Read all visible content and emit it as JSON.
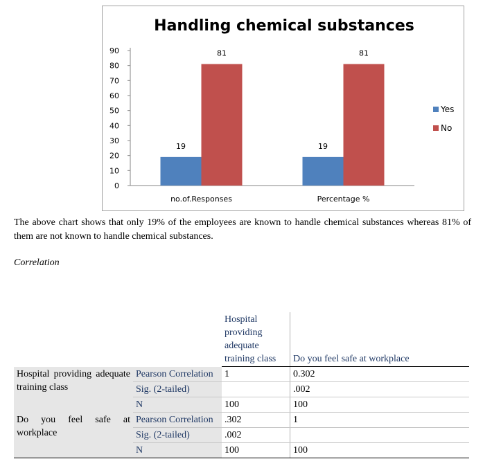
{
  "chart_data": {
    "type": "bar",
    "title": "Handling chemical substances",
    "categories": [
      "no.of.Responses",
      "Percentage %"
    ],
    "series": [
      {
        "name": "Yes",
        "values": [
          19,
          19
        ],
        "color": "#4f81bd"
      },
      {
        "name": "No",
        "values": [
          81,
          81
        ],
        "color": "#c0504d"
      }
    ],
    "ylim": [
      0,
      90
    ],
    "yticks": [
      0,
      10,
      20,
      30,
      40,
      50,
      60,
      70,
      80,
      90
    ],
    "legend_position": "right",
    "grid": false
  },
  "paragraph": "The above chart shows that only 19% of the employees are known to handle chemical substances whereas 81% of them are not known to handle chemical substances.",
  "section_heading": "Correlation",
  "table": {
    "col_headers": [
      "Hospital providing adequate training class",
      "Do you feel safe at workplace"
    ],
    "rows": [
      {
        "label": "Hospital providing adequate training class",
        "stats": [
          {
            "name": "Pearson Correlation",
            "v1": "1",
            "v2": "0.302"
          },
          {
            "name": "Sig. (2-tailed)",
            "v1": "",
            "v2": ".002"
          },
          {
            "name": "N",
            "v1": "100",
            "v2": "100"
          }
        ]
      },
      {
        "label": "Do you feel safe at workplace",
        "stats": [
          {
            "name": "Pearson Correlation",
            "v1": ".302",
            "v2": "1"
          },
          {
            "name": "Sig. (2-tailed)",
            "v1": ".002",
            "v2": ""
          },
          {
            "name": "N",
            "v1": "100",
            "v2": "100"
          }
        ]
      }
    ]
  }
}
